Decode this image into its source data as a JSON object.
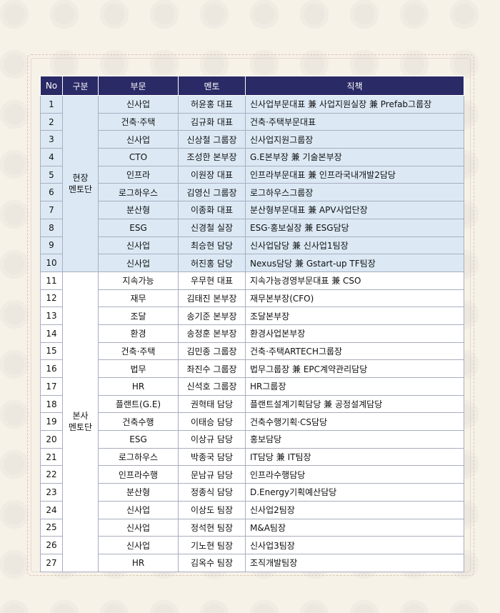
{
  "table": {
    "headers": [
      "No",
      "구분",
      "부문",
      "멘토",
      "직책"
    ],
    "groups": {
      "field": "현장\n멘토단",
      "hq": "본사\n멘토단"
    },
    "rows": [
      {
        "no": "1",
        "dept": "신사업",
        "mentor": "허윤홍 대표",
        "role": "신사업부문대표 兼 사업지원실장 兼 Prefab그룹장"
      },
      {
        "no": "2",
        "dept": "건축·주택",
        "mentor": "김규화 대표",
        "role": "건축·주택부문대표"
      },
      {
        "no": "3",
        "dept": "신사업",
        "mentor": "신상철 그룹장",
        "role": "신사업지원그룹장"
      },
      {
        "no": "4",
        "dept": "CTO",
        "mentor": "조성한 본부장",
        "role": "G.E본부장 兼 기술본부장"
      },
      {
        "no": "5",
        "dept": "인프라",
        "mentor": "이원장 대표",
        "role": "인프라부문대표 兼 인프라국내개발2담당"
      },
      {
        "no": "6",
        "dept": "로그하우스",
        "mentor": "김영신 그룹장",
        "role": "로그하우스그룹장"
      },
      {
        "no": "7",
        "dept": "분산형",
        "mentor": "이종화 대표",
        "role": "분산형부문대표 兼 APV사업단장"
      },
      {
        "no": "8",
        "dept": "ESG",
        "mentor": "신경철 실장",
        "role": "ESG·홍보실장 兼 ESG담당"
      },
      {
        "no": "9",
        "dept": "신사업",
        "mentor": "최승현 담당",
        "role": "신사업담당 兼 신사업1팀장"
      },
      {
        "no": "10",
        "dept": "신사업",
        "mentor": "허진홍 담당",
        "role": "Nexus담당 兼 Gstart-up TF팀장"
      },
      {
        "no": "11",
        "dept": "지속가능",
        "mentor": "우무현 대표",
        "role": "지속가능경영부문대표 兼 CSO"
      },
      {
        "no": "12",
        "dept": "재무",
        "mentor": "김태진 본부장",
        "role": "재무본부장(CFO)"
      },
      {
        "no": "13",
        "dept": "조달",
        "mentor": "송기준 본부장",
        "role": "조달본부장"
      },
      {
        "no": "14",
        "dept": "환경",
        "mentor": "송정훈 본부장",
        "role": "환경사업본부장"
      },
      {
        "no": "15",
        "dept": "건축·주택",
        "mentor": "김민종 그룹장",
        "role": "건축·주택ARTECH그룹장"
      },
      {
        "no": "16",
        "dept": "법무",
        "mentor": "좌진수 그룹장",
        "role": "법무그룹장 兼 EPC계약관리담당"
      },
      {
        "no": "17",
        "dept": "HR",
        "mentor": "신석호 그룹장",
        "role": "HR그룹장"
      },
      {
        "no": "18",
        "dept": "플랜트(G.E)",
        "mentor": "권혁태 담당",
        "role": "플랜트설계기획담당 兼 공정설계담당"
      },
      {
        "no": "19",
        "dept": "건축수행",
        "mentor": "이태승 담당",
        "role": "건축수행기획·CS담당"
      },
      {
        "no": "20",
        "dept": "ESG",
        "mentor": "이상규 담당",
        "role": "홍보담당"
      },
      {
        "no": "21",
        "dept": "로그하우스",
        "mentor": "박종국 담당",
        "role": "IT담당 兼 IT팀장"
      },
      {
        "no": "22",
        "dept": "인프라수행",
        "mentor": "문남규 담당",
        "role": "인프라수행담당"
      },
      {
        "no": "23",
        "dept": "분산형",
        "mentor": "정종식 담당",
        "role": "D.Energy기획예산담당"
      },
      {
        "no": "24",
        "dept": "신사업",
        "mentor": "이상도 팀장",
        "role": "신사업2팀장"
      },
      {
        "no": "25",
        "dept": "신사업",
        "mentor": "정석현 팀장",
        "role": "M&A팀장"
      },
      {
        "no": "26",
        "dept": "신사업",
        "mentor": "기노현 팀장",
        "role": "신사업3팀장"
      },
      {
        "no": "27",
        "dept": "HR",
        "mentor": "김옥수 팀장",
        "role": "조직개발팀장"
      }
    ]
  }
}
